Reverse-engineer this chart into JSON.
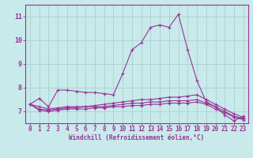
{
  "title": "",
  "xlabel": "Windchill (Refroidissement éolien,°C)",
  "ylabel": "",
  "background_color": "#c8eaea",
  "grid_color": "#aad0d0",
  "line_color": "#993399",
  "x_values": [
    0,
    1,
    2,
    3,
    4,
    5,
    6,
    7,
    8,
    9,
    10,
    11,
    12,
    13,
    14,
    15,
    16,
    17,
    18,
    19,
    20,
    21,
    22,
    23
  ],
  "line1": [
    7.3,
    7.55,
    7.2,
    7.9,
    7.9,
    7.85,
    7.8,
    7.8,
    7.75,
    7.7,
    8.6,
    9.6,
    9.9,
    10.55,
    10.65,
    10.55,
    11.1,
    9.6,
    8.3,
    7.4,
    7.2,
    6.85,
    6.6,
    6.8
  ],
  "line2": [
    7.3,
    7.2,
    7.1,
    7.15,
    7.2,
    7.2,
    7.2,
    7.25,
    7.3,
    7.35,
    7.4,
    7.45,
    7.5,
    7.5,
    7.55,
    7.6,
    7.6,
    7.65,
    7.7,
    7.5,
    7.3,
    7.1,
    6.9,
    6.75
  ],
  "line3": [
    7.3,
    7.1,
    7.05,
    7.1,
    7.15,
    7.15,
    7.2,
    7.2,
    7.2,
    7.25,
    7.3,
    7.35,
    7.35,
    7.4,
    7.4,
    7.45,
    7.45,
    7.45,
    7.5,
    7.35,
    7.2,
    7.0,
    6.8,
    6.7
  ],
  "line4": [
    7.3,
    7.05,
    7.0,
    7.05,
    7.1,
    7.1,
    7.1,
    7.15,
    7.15,
    7.2,
    7.2,
    7.25,
    7.25,
    7.3,
    7.3,
    7.35,
    7.35,
    7.35,
    7.4,
    7.3,
    7.1,
    6.95,
    6.75,
    6.65
  ],
  "ylim": [
    6.5,
    11.5
  ],
  "xlim": [
    -0.5,
    23.5
  ],
  "yticks": [
    7,
    8,
    9,
    10,
    11
  ],
  "xticks": [
    0,
    1,
    2,
    3,
    4,
    5,
    6,
    7,
    8,
    9,
    10,
    11,
    12,
    13,
    14,
    15,
    16,
    17,
    18,
    19,
    20,
    21,
    22,
    23
  ],
  "tick_fontsize": 5.5,
  "xlabel_fontsize": 5.5,
  "lw": 0.8,
  "ms": 2.5
}
